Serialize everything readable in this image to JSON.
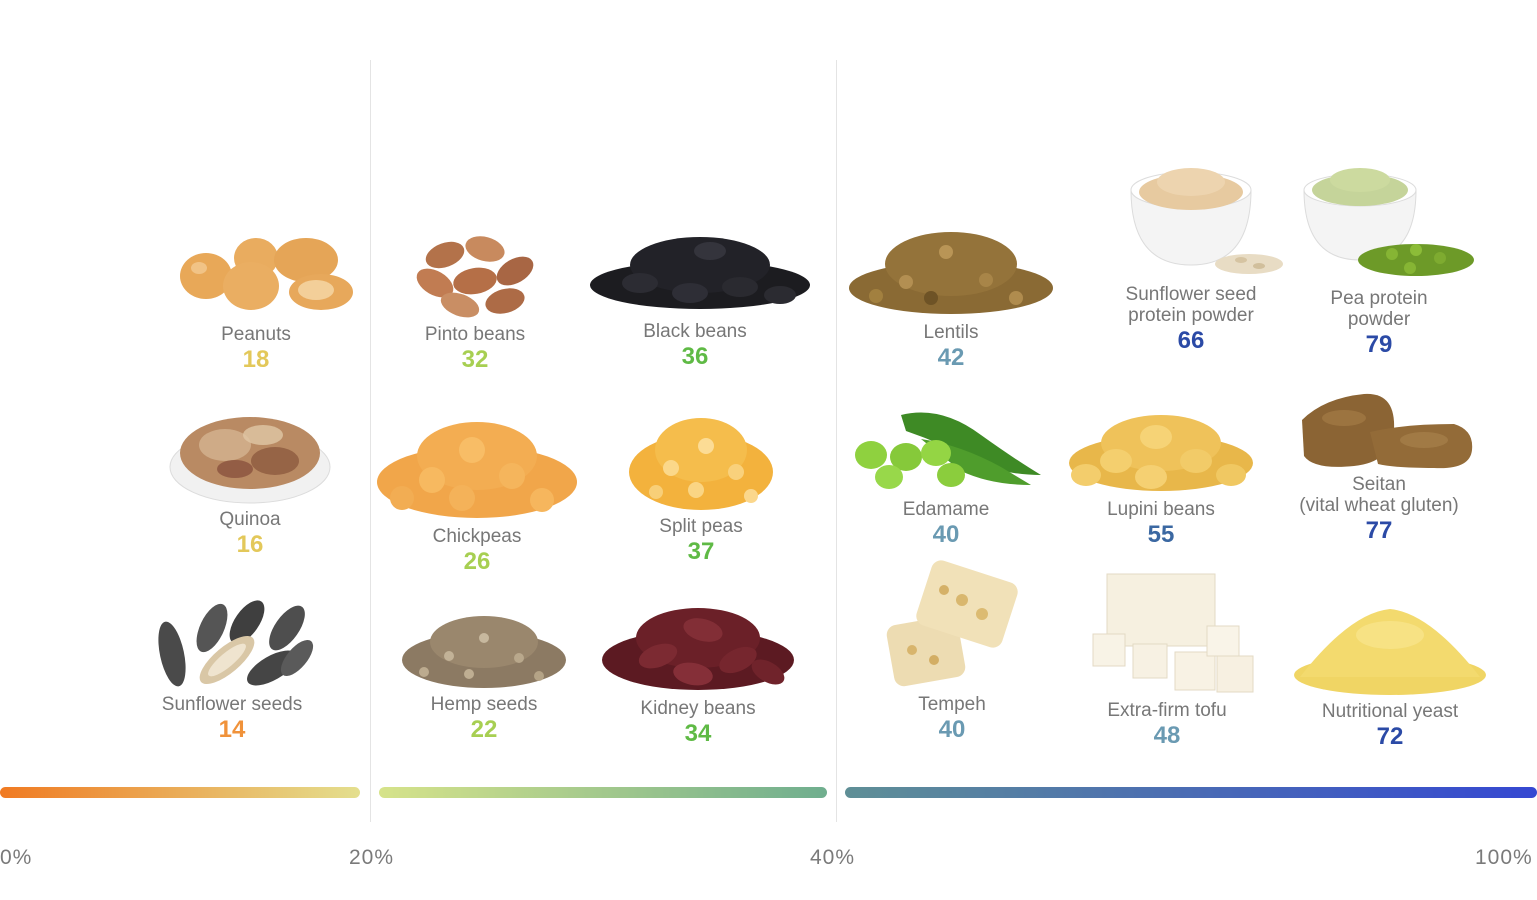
{
  "items": {
    "peanuts": {
      "label": "Peanuts",
      "value": "18",
      "color": "#e3c85a",
      "image": "peanuts-image"
    },
    "quinoa": {
      "label": "Quinoa",
      "value": "16",
      "color": "#e3c85a",
      "image": "quinoa-bowl-image"
    },
    "sunflower_seeds": {
      "label": "Sunflower seeds",
      "value": "14",
      "color": "#f0923a",
      "image": "sunflower-seeds-image"
    },
    "pinto_beans": {
      "label": "Pinto beans",
      "value": "32",
      "color": "#a7cf52",
      "image": "pinto-beans-image"
    },
    "black_beans": {
      "label": "Black beans",
      "value": "36",
      "color": "#5fba45",
      "image": "black-beans-image"
    },
    "chickpeas": {
      "label": "Chickpeas",
      "value": "26",
      "color": "#a7cf52",
      "image": "chickpeas-image"
    },
    "split_peas": {
      "label": "Split peas",
      "value": "37",
      "color": "#5fba45",
      "image": "split-peas-image"
    },
    "hemp_seeds": {
      "label": "Hemp seeds",
      "value": "22",
      "color": "#a7cf52",
      "image": "hemp-seeds-image"
    },
    "kidney_beans": {
      "label": "Kidney beans",
      "value": "34",
      "color": "#5fba45",
      "image": "kidney-beans-image"
    },
    "lentils": {
      "label": "Lentils",
      "value": "42",
      "color": "#6a9ab2",
      "image": "lentils-image"
    },
    "sunflower_protein": {
      "label_lines": [
        "Sunflower seed",
        "protein powder"
      ],
      "value": "66",
      "color": "#2b4aa6",
      "image": "sunflower-protein-powder-image"
    },
    "pea_protein": {
      "label_lines": [
        "Pea protein",
        "powder"
      ],
      "value": "79",
      "color": "#2b4aa6",
      "image": "pea-protein-powder-image"
    },
    "edamame": {
      "label": "Edamame",
      "value": "40",
      "color": "#6a9ab2",
      "image": "edamame-image"
    },
    "lupini_beans": {
      "label": "Lupini beans",
      "value": "55",
      "color": "#3b68a2",
      "image": "lupini-beans-image"
    },
    "seitan": {
      "label_lines": [
        "Seitan",
        "(vital wheat gluten)"
      ],
      "value": "77",
      "color": "#2b4aa6",
      "image": "seitan-image"
    },
    "tempeh": {
      "label": "Tempeh",
      "value": "40",
      "color": "#6a9ab2",
      "image": "tempeh-image"
    },
    "tofu": {
      "label": "Extra-firm tofu",
      "value": "48",
      "color": "#6a9ab2",
      "image": "tofu-image"
    },
    "nutritional_yeast": {
      "label": "Nutritional yeast",
      "value": "72",
      "color": "#2b4aa6",
      "image": "nutritional-yeast-image"
    }
  },
  "scale": {
    "ticks": [
      "0%",
      "20%",
      "40%",
      "100%"
    ],
    "bar_colors": {
      "low": [
        "#f07a22",
        "#e4df8e"
      ],
      "mid": [
        "#d6e38a",
        "#6fae8e"
      ],
      "high": [
        "#5f8f96",
        "#3548d2"
      ]
    }
  }
}
